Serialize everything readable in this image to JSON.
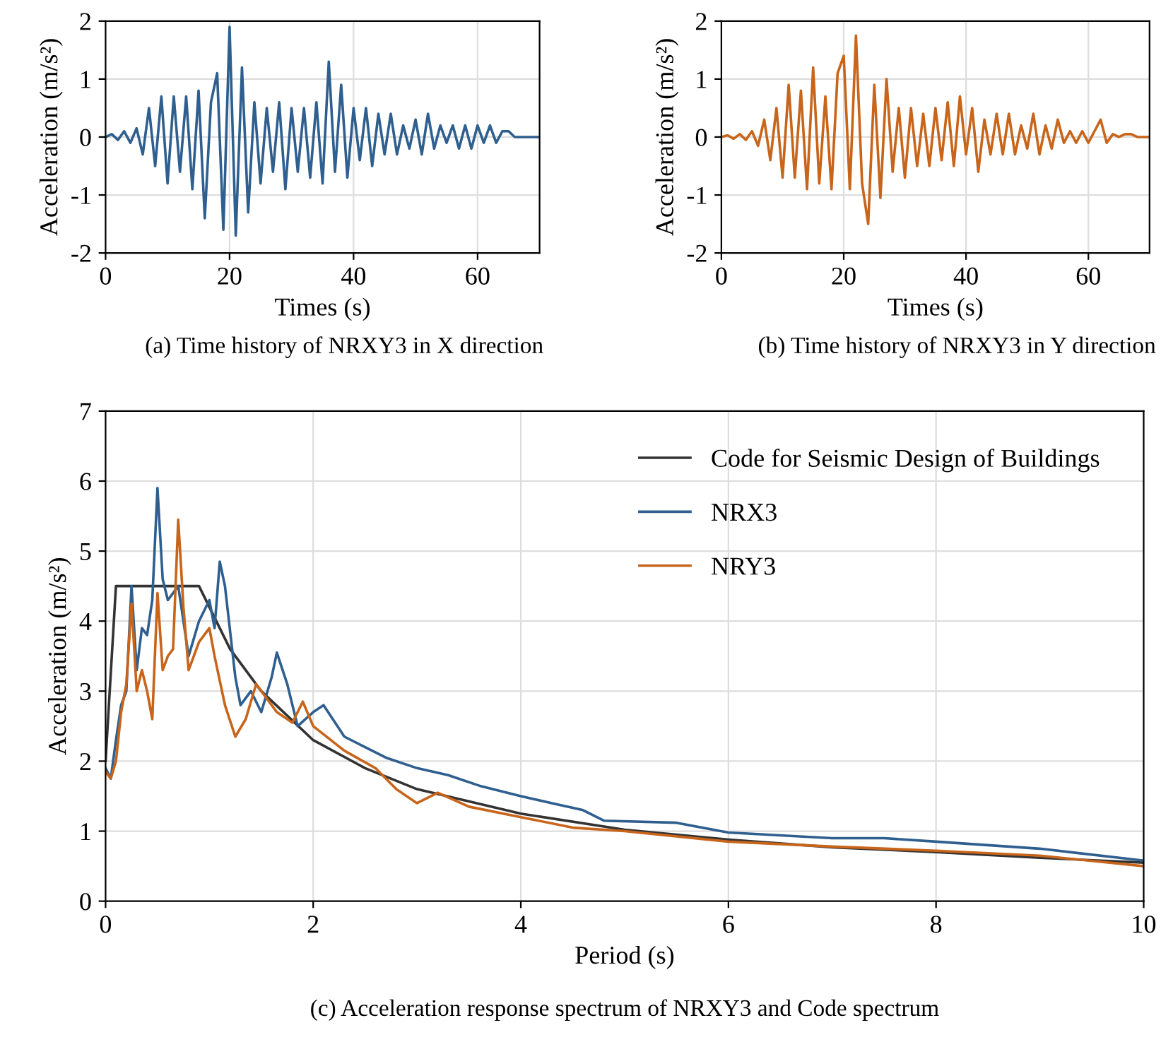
{
  "chart_data": [
    {
      "type": "line",
      "xlabel": "Times (s)",
      "ylabel": "Acceleration (m/s²)",
      "xlim": [
        0,
        70
      ],
      "ylim": [
        -2,
        2
      ],
      "xticks": [
        0,
        20,
        40,
        60
      ],
      "yticks": [
        -2,
        -1,
        0,
        1,
        2
      ],
      "grid": true,
      "annotations": [
        "(a) Time history of NRXY3 in X direction"
      ],
      "x": [
        0,
        1,
        2,
        3,
        4,
        5,
        6,
        7,
        8,
        9,
        10,
        11,
        12,
        13,
        14,
        15,
        16,
        17,
        18,
        19,
        20,
        21,
        22,
        23,
        24,
        25,
        26,
        27,
        28,
        29,
        30,
        31,
        32,
        33,
        34,
        35,
        36,
        37,
        38,
        39,
        40,
        41,
        42,
        43,
        44,
        45,
        46,
        47,
        48,
        49,
        50,
        51,
        52,
        53,
        54,
        55,
        56,
        57,
        58,
        59,
        60,
        61,
        62,
        63,
        64,
        65,
        66,
        67,
        68,
        69,
        70
      ],
      "series": [
        {
          "color": "#2f5f8f",
          "values": [
            0,
            0.05,
            -0.05,
            0.1,
            -0.1,
            0.15,
            -0.3,
            0.5,
            -0.5,
            0.7,
            -0.8,
            0.7,
            -0.6,
            0.7,
            -0.9,
            0.8,
            -1.4,
            0.6,
            1.1,
            -1.6,
            1.9,
            -1.7,
            1.2,
            -1.3,
            0.6,
            -0.8,
            0.5,
            -0.6,
            0.6,
            -0.9,
            0.5,
            -0.6,
            0.5,
            -0.7,
            0.6,
            -0.8,
            1.3,
            -0.6,
            0.9,
            -0.7,
            0.5,
            -0.4,
            0.5,
            -0.5,
            0.4,
            -0.3,
            0.4,
            -0.3,
            0.2,
            -0.2,
            0.3,
            -0.3,
            0.4,
            -0.2,
            0.2,
            -0.1,
            0.2,
            -0.2,
            0.2,
            -0.2,
            0.2,
            -0.1,
            0.2,
            -0.1,
            0.1,
            0.1,
            0,
            0,
            0,
            0,
            0
          ]
        }
      ]
    },
    {
      "type": "line",
      "xlabel": "Times (s)",
      "ylabel": "Acceleration (m/s²)",
      "xlim": [
        0,
        70
      ],
      "ylim": [
        -2,
        2
      ],
      "xticks": [
        0,
        20,
        40,
        60
      ],
      "yticks": [
        -2,
        -1,
        0,
        1,
        2
      ],
      "grid": true,
      "annotations": [
        "(b) Time history of NRXY3 in Y direction"
      ],
      "x": [
        0,
        1,
        2,
        3,
        4,
        5,
        6,
        7,
        8,
        9,
        10,
        11,
        12,
        13,
        14,
        15,
        16,
        17,
        18,
        19,
        20,
        21,
        22,
        23,
        24,
        25,
        26,
        27,
        28,
        29,
        30,
        31,
        32,
        33,
        34,
        35,
        36,
        37,
        38,
        39,
        40,
        41,
        42,
        43,
        44,
        45,
        46,
        47,
        48,
        49,
        50,
        51,
        52,
        53,
        54,
        55,
        56,
        57,
        58,
        59,
        60,
        61,
        62,
        63,
        64,
        65,
        66,
        67,
        68,
        69,
        70
      ],
      "series": [
        {
          "color": "#c8651b",
          "values": [
            0,
            0.03,
            -0.03,
            0.05,
            -0.05,
            0.1,
            -0.15,
            0.3,
            -0.4,
            0.5,
            -0.7,
            0.9,
            -0.7,
            0.8,
            -0.9,
            1.2,
            -0.8,
            0.7,
            -0.9,
            1.1,
            1.4,
            -0.9,
            1.75,
            -0.8,
            -1.5,
            0.9,
            -1.05,
            1.0,
            -0.6,
            0.5,
            -0.7,
            0.5,
            -0.5,
            0.4,
            -0.5,
            0.5,
            -0.4,
            0.6,
            -0.5,
            0.7,
            -0.3,
            0.5,
            -0.6,
            0.3,
            -0.3,
            0.4,
            -0.3,
            0.4,
            -0.3,
            0.2,
            -0.2,
            0.4,
            -0.3,
            0.2,
            -0.2,
            0.3,
            -0.1,
            0.1,
            -0.1,
            0.1,
            -0.1,
            0.1,
            0.3,
            -0.1,
            0.05,
            0,
            0.05,
            0.05,
            0,
            0,
            0
          ]
        }
      ]
    },
    {
      "type": "line",
      "xlabel": "Period (s)",
      "ylabel": "Acceleration (m/s²)",
      "xlim": [
        0,
        10
      ],
      "ylim": [
        0,
        7
      ],
      "xticks": [
        0,
        2,
        4,
        6,
        8,
        10
      ],
      "yticks": [
        0,
        1,
        2,
        3,
        4,
        5,
        6,
        7
      ],
      "grid": true,
      "legend": "top right",
      "annotations": [
        "(c) Acceleration response spectrum of NRXY3 and Code spectrum"
      ],
      "series": [
        {
          "name": "Code for Seismic Design of Buildings",
          "color": "#333333",
          "x": [
            0,
            0.1,
            0.9,
            1.2,
            1.5,
            2,
            2.5,
            3,
            4,
            5,
            6,
            7,
            8,
            9,
            10
          ],
          "values": [
            2.0,
            4.5,
            4.5,
            3.6,
            3.0,
            2.3,
            1.9,
            1.6,
            1.25,
            1.02,
            0.88,
            0.77,
            0.7,
            0.62,
            0.55
          ]
        },
        {
          "name": "NRX3",
          "color": "#2f5f8f",
          "x": [
            0,
            0.05,
            0.1,
            0.15,
            0.2,
            0.25,
            0.3,
            0.35,
            0.4,
            0.45,
            0.5,
            0.55,
            0.6,
            0.7,
            0.8,
            0.9,
            1.0,
            1.05,
            1.1,
            1.15,
            1.25,
            1.3,
            1.4,
            1.5,
            1.6,
            1.65,
            1.75,
            1.85,
            2.0,
            2.1,
            2.3,
            2.5,
            2.7,
            3.0,
            3.3,
            3.6,
            4.0,
            4.3,
            4.6,
            4.8,
            5.5,
            6,
            7,
            7.5,
            8,
            9,
            10
          ],
          "values": [
            1.9,
            1.75,
            2.3,
            2.8,
            3.0,
            4.5,
            3.3,
            3.9,
            3.8,
            4.3,
            5.9,
            4.6,
            4.3,
            4.5,
            3.5,
            4.0,
            4.3,
            3.9,
            4.85,
            4.5,
            3.2,
            2.8,
            3.0,
            2.7,
            3.2,
            3.55,
            3.1,
            2.5,
            2.7,
            2.8,
            2.35,
            2.2,
            2.05,
            1.9,
            1.8,
            1.65,
            1.5,
            1.4,
            1.3,
            1.15,
            1.12,
            0.98,
            0.9,
            0.9,
            0.85,
            0.75,
            0.58
          ]
        },
        {
          "name": "NRY3",
          "color": "#c8651b",
          "x": [
            0,
            0.05,
            0.1,
            0.15,
            0.2,
            0.25,
            0.3,
            0.35,
            0.4,
            0.45,
            0.5,
            0.55,
            0.6,
            0.65,
            0.7,
            0.75,
            0.8,
            0.9,
            1.0,
            1.05,
            1.15,
            1.25,
            1.35,
            1.45,
            1.55,
            1.65,
            1.8,
            1.9,
            2.0,
            2.3,
            2.6,
            2.8,
            3.0,
            3.2,
            3.5,
            4.0,
            4.5,
            5,
            6,
            7,
            8,
            9,
            10
          ],
          "values": [
            1.85,
            1.75,
            2.0,
            2.7,
            3.1,
            4.25,
            3.0,
            3.3,
            3.0,
            2.6,
            4.4,
            3.3,
            3.5,
            3.6,
            5.45,
            4.2,
            3.3,
            3.7,
            3.9,
            3.5,
            2.8,
            2.35,
            2.6,
            3.1,
            2.9,
            2.7,
            2.55,
            2.85,
            2.5,
            2.15,
            1.9,
            1.6,
            1.4,
            1.55,
            1.35,
            1.2,
            1.05,
            1.0,
            0.85,
            0.78,
            0.72,
            0.65,
            0.5
          ]
        }
      ]
    }
  ]
}
